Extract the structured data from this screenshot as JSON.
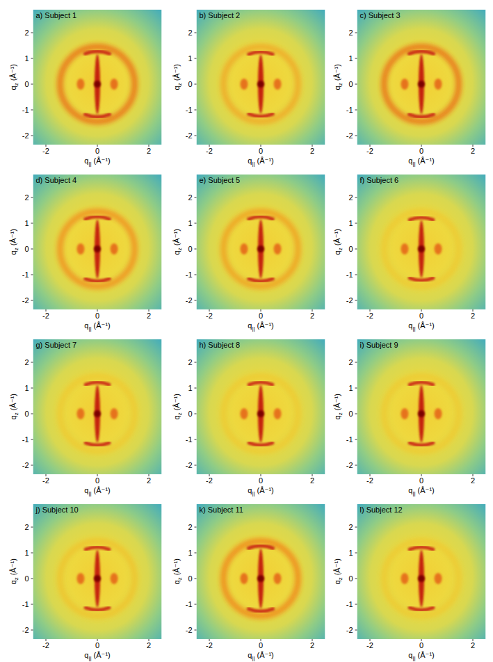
{
  "chart_data": [
    {
      "type": "diffraction",
      "title": "a) Subject 1",
      "xlabel": "q|| (Å⁻¹)",
      "ylabel": "qz (Å⁻¹)",
      "xlim": [
        -2.5,
        2.5
      ],
      "ylim": [
        -2.35,
        2.9
      ],
      "xticks": [
        -2,
        0,
        2
      ],
      "yticks": [
        -2,
        -1,
        0,
        1,
        2
      ],
      "ring_radius": 1.45,
      "ring_intensity": 0.9,
      "meridional_arc": 1.27,
      "equatorial_peak": 0.65
    },
    {
      "type": "diffraction",
      "title": "b) Subject 2",
      "xlabel": "q|| (Å⁻¹)",
      "ylabel": "qz (Å⁻¹)",
      "xlim": [
        -2.5,
        2.5
      ],
      "ylim": [
        -2.35,
        2.9
      ],
      "xticks": [
        -2,
        0,
        2
      ],
      "yticks": [
        -2,
        -1,
        0,
        1,
        2
      ],
      "ring_radius": 1.45,
      "ring_intensity": 0.6,
      "meridional_arc": 1.25,
      "equatorial_peak": 0.65
    },
    {
      "type": "diffraction",
      "title": "c) Subject 3",
      "xlabel": "q|| (Å⁻¹)",
      "ylabel": "qz (Å⁻¹)",
      "xlim": [
        -2.5,
        2.5
      ],
      "ylim": [
        -2.35,
        2.9
      ],
      "xticks": [
        -2,
        0,
        2
      ],
      "yticks": [
        -2,
        -1,
        0,
        1,
        2
      ],
      "ring_radius": 1.45,
      "ring_intensity": 0.9,
      "meridional_arc": 1.27,
      "equatorial_peak": 0.65
    },
    {
      "type": "diffraction",
      "title": "d) Subject 4",
      "xlabel": "q|| (Å⁻¹)",
      "ylabel": "qz (Å⁻¹)",
      "xlim": [
        -2.5,
        2.5
      ],
      "ylim": [
        -2.35,
        2.9
      ],
      "xticks": [
        -2,
        0,
        2
      ],
      "yticks": [
        -2,
        -1,
        0,
        1,
        2
      ],
      "ring_radius": 1.45,
      "ring_intensity": 0.75,
      "meridional_arc": 1.25,
      "equatorial_peak": 0.65
    },
    {
      "type": "diffraction",
      "title": "e) Subject 5",
      "xlabel": "q|| (Å⁻¹)",
      "ylabel": "qz (Å⁻¹)",
      "xlim": [
        -2.5,
        2.5
      ],
      "ylim": [
        -2.35,
        2.9
      ],
      "xticks": [
        -2,
        0,
        2
      ],
      "yticks": [
        -2,
        -1,
        0,
        1,
        2
      ],
      "ring_radius": 1.45,
      "ring_intensity": 0.65,
      "meridional_arc": 1.25,
      "equatorial_peak": 0.65
    },
    {
      "type": "diffraction",
      "title": "f) Subject 6",
      "xlabel": "q|| (Å⁻¹)",
      "ylabel": "qz (Å⁻¹)",
      "xlim": [
        -2.5,
        2.5
      ],
      "ylim": [
        -2.35,
        2.9
      ],
      "xticks": [
        -2,
        0,
        2
      ],
      "yticks": [
        -2,
        -1,
        0,
        1,
        2
      ],
      "ring_radius": 1.45,
      "ring_intensity": 0.35,
      "meridional_arc": 1.22,
      "equatorial_peak": 0.65
    },
    {
      "type": "diffraction",
      "title": "g) Subject 7",
      "xlabel": "q|| (Å⁻¹)",
      "ylabel": "qz (Å⁻¹)",
      "xlim": [
        -2.5,
        2.5
      ],
      "ylim": [
        -2.35,
        2.9
      ],
      "xticks": [
        -2,
        0,
        2
      ],
      "yticks": [
        -2,
        -1,
        0,
        1,
        2
      ],
      "ring_radius": 1.45,
      "ring_intensity": 0.35,
      "meridional_arc": 1.22,
      "equatorial_peak": 0.65
    },
    {
      "type": "diffraction",
      "title": "h) Subject 8",
      "xlabel": "q|| (Å⁻¹)",
      "ylabel": "qz (Å⁻¹)",
      "xlim": [
        -2.5,
        2.5
      ],
      "ylim": [
        -2.35,
        2.9
      ],
      "xticks": [
        -2,
        0,
        2
      ],
      "yticks": [
        -2,
        -1,
        0,
        1,
        2
      ],
      "ring_radius": 1.45,
      "ring_intensity": 0.35,
      "meridional_arc": 1.22,
      "equatorial_peak": 0.65
    },
    {
      "type": "diffraction",
      "title": "i) Subject 9",
      "xlabel": "q|| (Å⁻¹)",
      "ylabel": "qz (Å⁻¹)",
      "xlim": [
        -2.5,
        2.5
      ],
      "ylim": [
        -2.35,
        2.9
      ],
      "xticks": [
        -2,
        0,
        2
      ],
      "yticks": [
        -2,
        -1,
        0,
        1,
        2
      ],
      "ring_radius": 1.45,
      "ring_intensity": 0.35,
      "meridional_arc": 1.22,
      "equatorial_peak": 0.65
    },
    {
      "type": "diffraction",
      "title": "j) Subject 10",
      "xlabel": "q|| (Å⁻¹)",
      "ylabel": "qz (Å⁻¹)",
      "xlim": [
        -2.5,
        2.5
      ],
      "ylim": [
        -2.35,
        2.9
      ],
      "xticks": [
        -2,
        0,
        2
      ],
      "yticks": [
        -2,
        -1,
        0,
        1,
        2
      ],
      "ring_radius": 1.45,
      "ring_intensity": 0.4,
      "meridional_arc": 1.22,
      "equatorial_peak": 0.65
    },
    {
      "type": "diffraction",
      "title": "k) Subject 11",
      "xlabel": "q|| (Å⁻¹)",
      "ylabel": "qz (Å⁻¹)",
      "xlim": [
        -2.5,
        2.5
      ],
      "ylim": [
        -2.35,
        2.9
      ],
      "xticks": [
        -2,
        0,
        2
      ],
      "yticks": [
        -2,
        -1,
        0,
        1,
        2
      ],
      "ring_radius": 1.45,
      "ring_intensity": 0.8,
      "meridional_arc": 1.27,
      "equatorial_peak": 0.65
    },
    {
      "type": "diffraction",
      "title": "l) Subject 12",
      "xlabel": "q|| (Å⁻¹)",
      "ylabel": "qz (Å⁻¹)",
      "xlim": [
        -2.5,
        2.5
      ],
      "ylim": [
        -2.35,
        2.9
      ],
      "xticks": [
        -2,
        0,
        2
      ],
      "yticks": [
        -2,
        -1,
        0,
        1,
        2
      ],
      "ring_radius": 1.45,
      "ring_intensity": 0.35,
      "meridional_arc": 1.22,
      "equatorial_peak": 0.65
    }
  ]
}
